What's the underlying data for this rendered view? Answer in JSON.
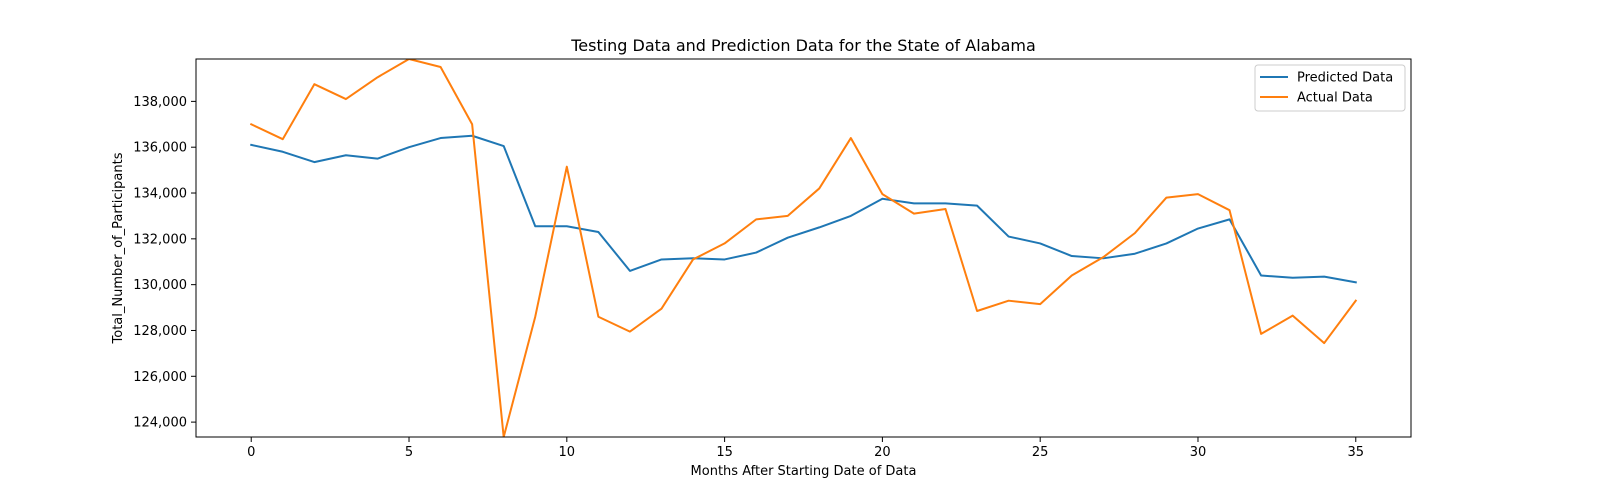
{
  "chart_data": {
    "type": "line",
    "title": "Testing Data and Prediction Data for the State of Alabama",
    "xlabel": "Months After Starting Date of Data",
    "ylabel": "Total_Number_of_Participants",
    "xlim": [
      -1.75,
      36.75
    ],
    "ylim": [
      123350,
      139850
    ],
    "xticks": [
      0,
      5,
      10,
      15,
      20,
      25,
      30,
      35
    ],
    "yticks": [
      124000,
      126000,
      128000,
      130000,
      132000,
      134000,
      136000,
      138000
    ],
    "ytick_labels": [
      "124,000",
      "126,000",
      "128,000",
      "130,000",
      "132,000",
      "134,000",
      "136,000",
      "138,000"
    ],
    "grid": false,
    "legend_position": "top-right",
    "x": [
      0,
      1,
      2,
      3,
      4,
      5,
      6,
      7,
      8,
      9,
      10,
      11,
      12,
      13,
      14,
      15,
      16,
      17,
      18,
      19,
      20,
      21,
      22,
      23,
      24,
      25,
      26,
      27,
      28,
      29,
      30,
      31,
      32,
      33,
      34,
      35
    ],
    "series": [
      {
        "name": "Predicted Data",
        "color": "#1f77b4",
        "values": [
          136100,
          135800,
          135350,
          135650,
          135500,
          136000,
          136400,
          136500,
          136050,
          132550,
          132550,
          132300,
          130600,
          131100,
          131150,
          131100,
          131400,
          132050,
          132500,
          133000,
          133750,
          133550,
          133550,
          133450,
          132100,
          131800,
          131250,
          131150,
          131350,
          131800,
          132450,
          132850,
          130400,
          130300,
          130350,
          130100
        ]
      },
      {
        "name": "Actual Data",
        "color": "#ff7f0e",
        "values": [
          137000,
          136350,
          138750,
          138100,
          139050,
          139850,
          139500,
          137000,
          123350,
          128600,
          135150,
          128600,
          127950,
          128950,
          131100,
          131800,
          132850,
          133000,
          134200,
          136400,
          133950,
          133100,
          133300,
          128850,
          129300,
          129150,
          130400,
          131200,
          132250,
          133800,
          133950,
          133250,
          127850,
          128650,
          127450,
          129300
        ]
      }
    ]
  }
}
